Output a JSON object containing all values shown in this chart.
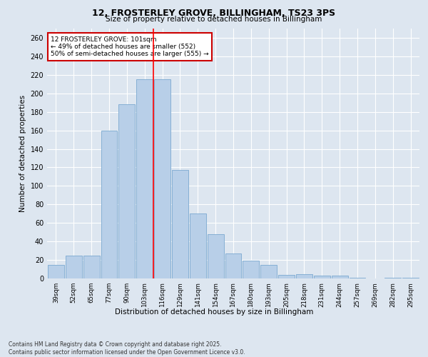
{
  "title1": "12, FROSTERLEY GROVE, BILLINGHAM, TS23 3PS",
  "title2": "Size of property relative to detached houses in Billingham",
  "xlabel": "Distribution of detached houses by size in Billingham",
  "ylabel": "Number of detached properties",
  "categories": [
    "39sqm",
    "52sqm",
    "65sqm",
    "77sqm",
    "90sqm",
    "103sqm",
    "116sqm",
    "129sqm",
    "141sqm",
    "154sqm",
    "167sqm",
    "180sqm",
    "193sqm",
    "205sqm",
    "218sqm",
    "231sqm",
    "244sqm",
    "257sqm",
    "269sqm",
    "282sqm",
    "295sqm"
  ],
  "values": [
    15,
    25,
    25,
    160,
    188,
    215,
    215,
    117,
    70,
    48,
    27,
    19,
    15,
    4,
    5,
    3,
    3,
    1,
    0,
    1,
    1
  ],
  "bar_color": "#b8cfe8",
  "bar_edge_color": "#7aa8d0",
  "annotation_text": "12 FROSTERLEY GROVE: 101sqm\n← 49% of detached houses are smaller (552)\n50% of semi-detached houses are larger (555) →",
  "annotation_box_color": "#ffffff",
  "annotation_box_edge": "#cc0000",
  "bg_color": "#dde6f0",
  "grid_color": "#ffffff",
  "footer1": "Contains HM Land Registry data © Crown copyright and database right 2025.",
  "footer2": "Contains public sector information licensed under the Open Government Licence v3.0.",
  "ylim": [
    0,
    270
  ],
  "yticks": [
    0,
    20,
    40,
    60,
    80,
    100,
    120,
    140,
    160,
    180,
    200,
    220,
    240,
    260
  ]
}
